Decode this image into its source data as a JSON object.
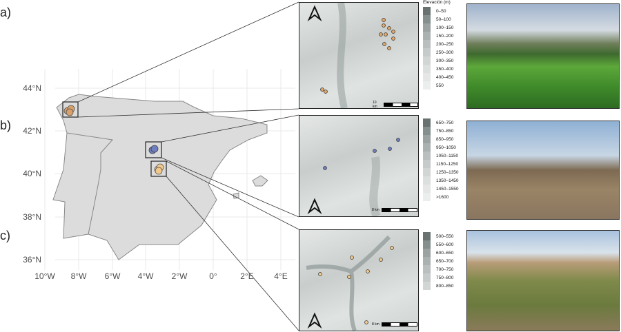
{
  "panels": [
    {
      "label": "a)"
    },
    {
      "label": "b)"
    },
    {
      "label": "c)"
    }
  ],
  "map": {
    "lat_ticks": [
      "44°N",
      "42°N",
      "40°N",
      "38°N",
      "36°N"
    ],
    "lon_ticks": [
      "10°W",
      "8°W",
      "6°W",
      "4°W",
      "2°W",
      "0°",
      "2°E",
      "4°E"
    ],
    "site_colors": {
      "a": "#d9a06a",
      "b": "#6e7fc0",
      "c": "#f2c98a"
    }
  },
  "insets": [
    {
      "legend_title": "Elevación (m)",
      "legend": [
        "0–50",
        "50–100",
        "100–150",
        "150–200",
        "200–250",
        "250–300",
        "300–350",
        "350–400",
        "400–450",
        "550"
      ],
      "scale": "10 km"
    },
    {
      "legend": [
        "650–750",
        "750–850",
        "850–950",
        "950–1050",
        "1050–1150",
        "1150–1250",
        "1250–1350",
        "1350–1450",
        "1450–1550",
        ">1600"
      ],
      "scale": "8 km"
    },
    {
      "legend": [
        "500–550",
        "550–600",
        "600–650",
        "650–700",
        "700–750",
        "750–800",
        "800–850"
      ],
      "scale": "8 km"
    }
  ],
  "legend_colors": [
    "#697171",
    "#858f8e",
    "#9aa3a2",
    "#aab2b1",
    "#b8bfbe",
    "#c5cbca",
    "#d1d6d5",
    "#dbdfde",
    "#e4e7e6",
    "#eceeed"
  ]
}
